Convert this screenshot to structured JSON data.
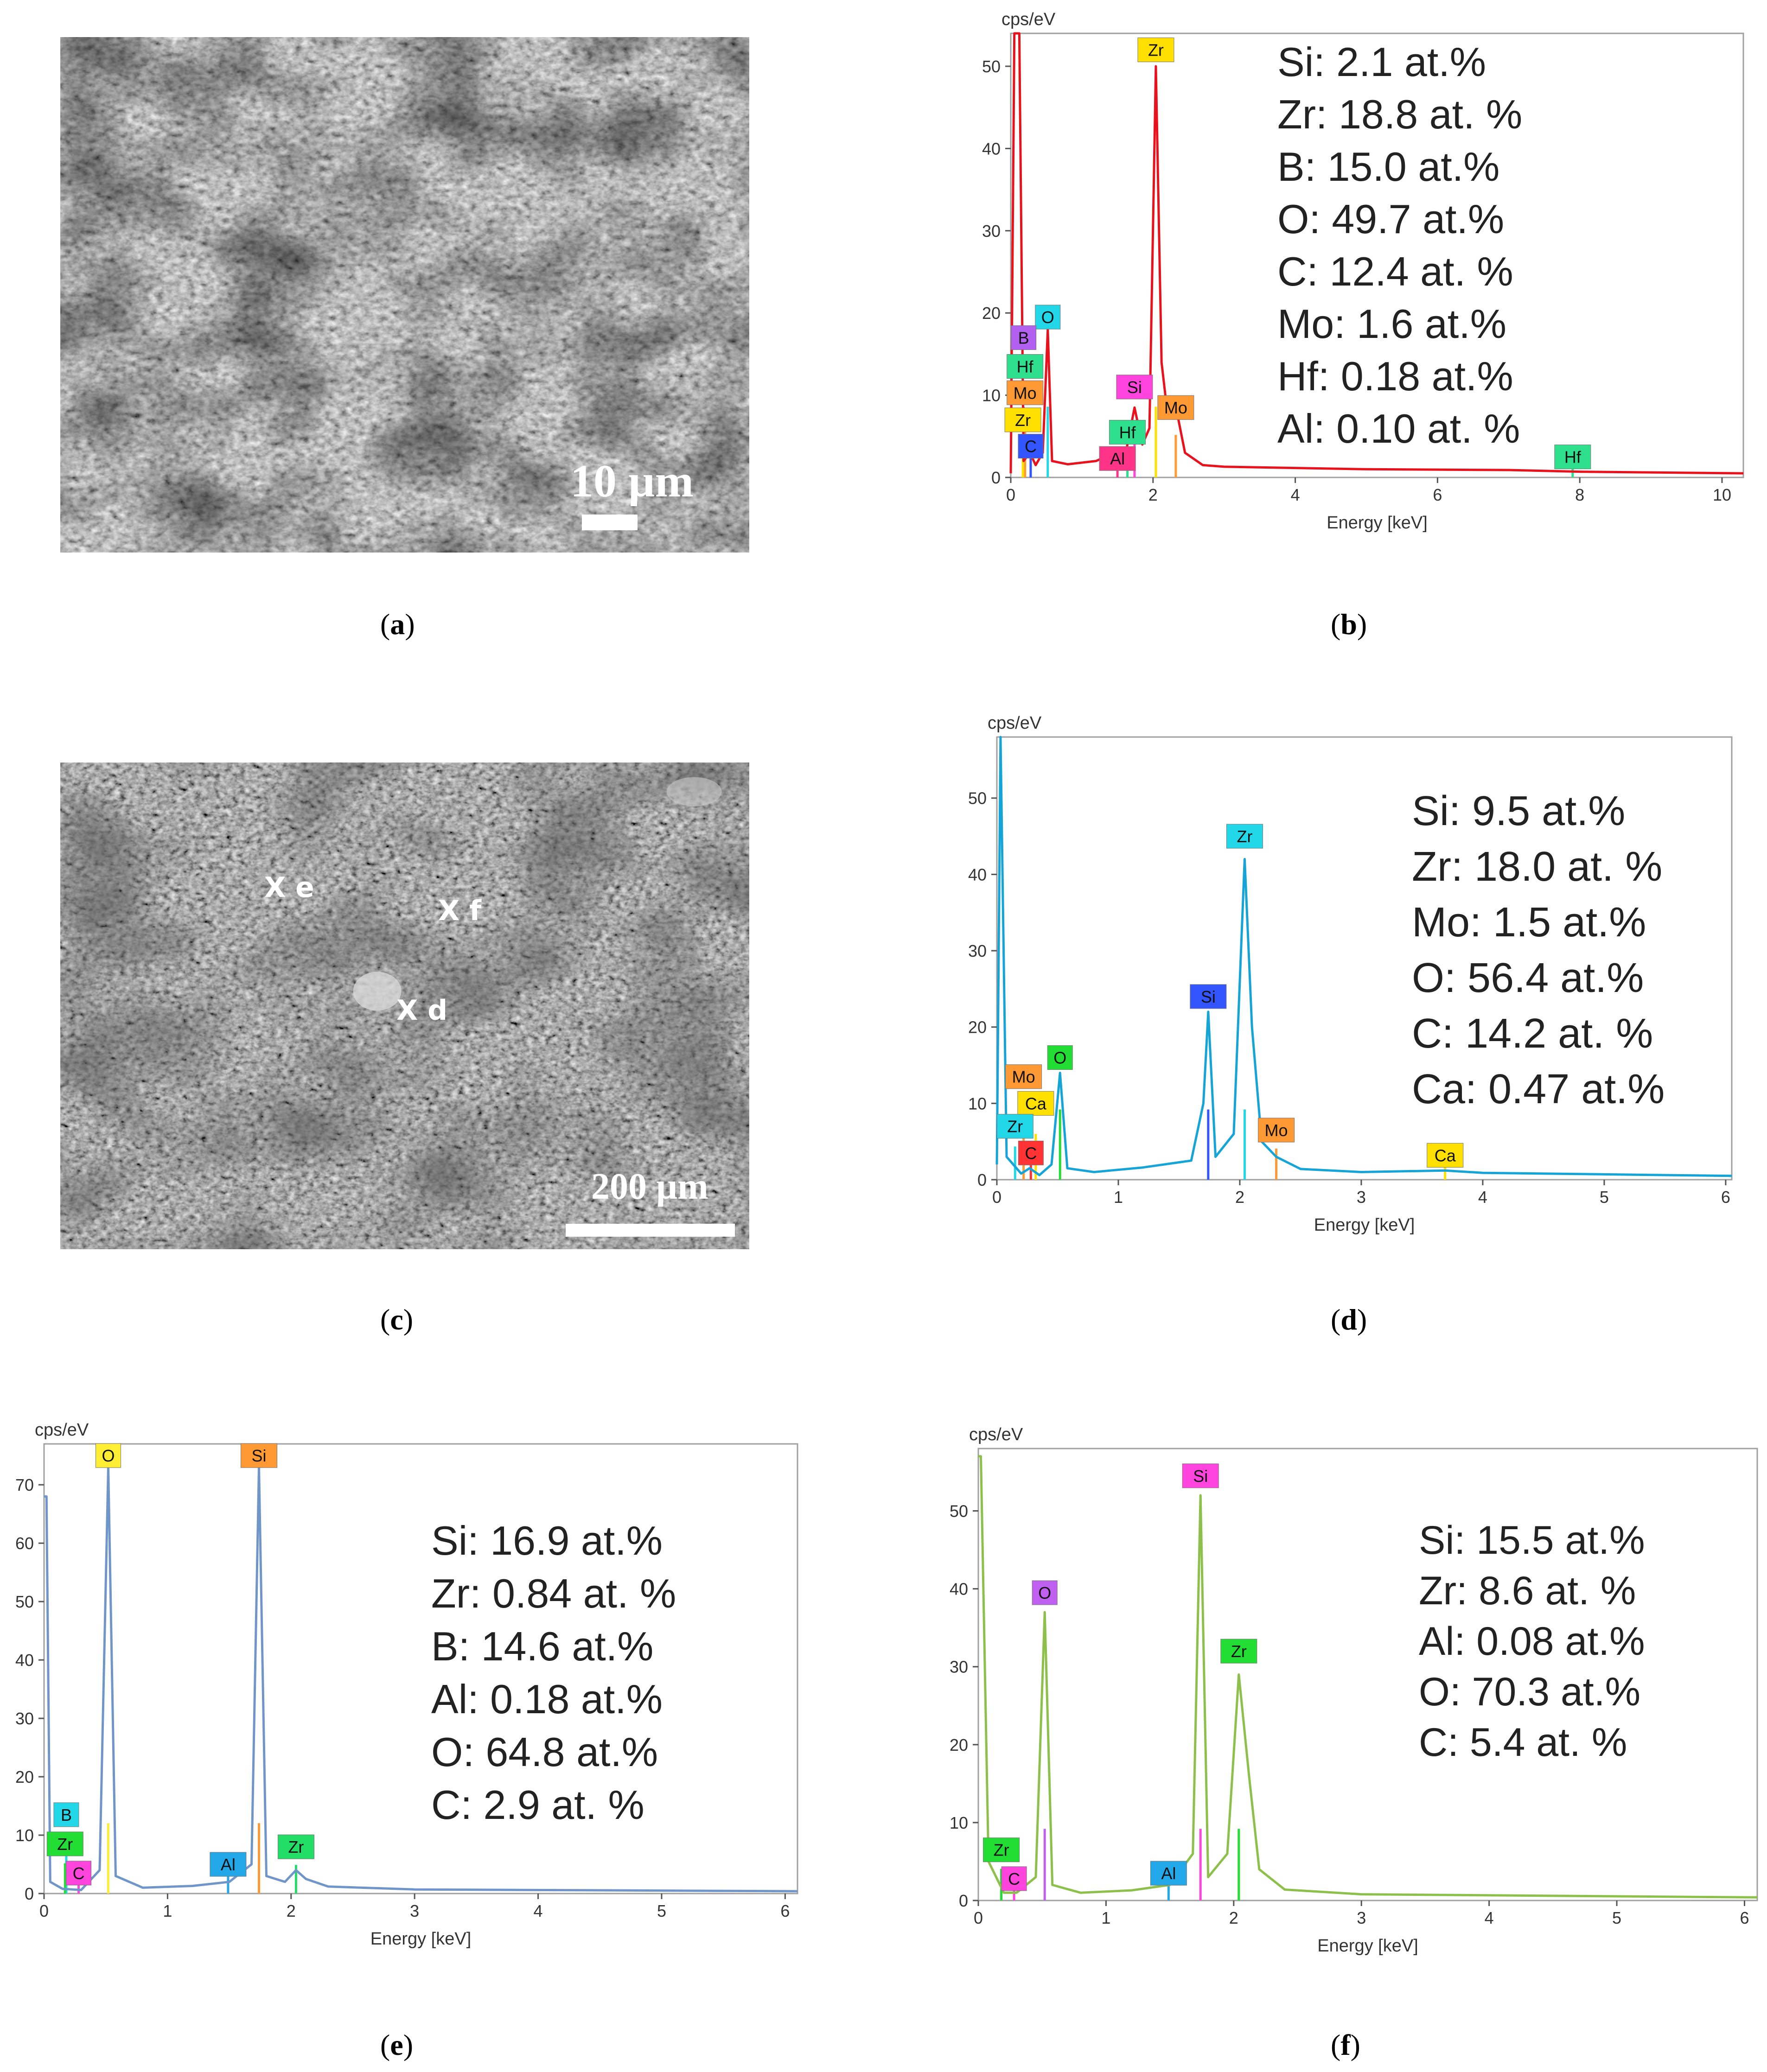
{
  "captions": {
    "a": "a",
    "b": "b",
    "c": "c",
    "d": "d",
    "e": "e",
    "f": "f"
  },
  "sem_a": {
    "scale_label": "10 µm"
  },
  "sem_c": {
    "scale_label": "200 µm",
    "markers": [
      {
        "label": "X e"
      },
      {
        "label": "X f"
      },
      {
        "label": "X d"
      }
    ]
  },
  "chart_data": [
    {
      "id": "b",
      "type": "line",
      "title": "",
      "color": "#e8111c",
      "ylabel": "cps/eV",
      "xlabel": "Energy [keV]",
      "xlim": [
        0,
        10.3
      ],
      "ylim": [
        0,
        54
      ],
      "xticks": [
        0,
        2,
        4,
        6,
        8,
        10
      ],
      "yticks": [
        0,
        10,
        20,
        30,
        40,
        50
      ],
      "baseline_y": [
        0,
        2.1
      ],
      "points": [
        [
          0,
          0.5
        ],
        [
          0.05,
          54
        ],
        [
          0.12,
          54
        ],
        [
          0.18,
          2
        ],
        [
          0.27,
          3
        ],
        [
          0.35,
          1.5
        ],
        [
          0.45,
          3
        ],
        [
          0.52,
          18
        ],
        [
          0.58,
          2
        ],
        [
          0.8,
          1.6
        ],
        [
          1.2,
          2
        ],
        [
          1.4,
          2.8
        ],
        [
          1.6,
          2.2
        ],
        [
          1.74,
          8.5
        ],
        [
          1.85,
          4
        ],
        [
          1.95,
          6
        ],
        [
          2.04,
          50
        ],
        [
          2.12,
          14
        ],
        [
          2.2,
          8
        ],
        [
          2.3,
          9.5
        ],
        [
          2.45,
          3
        ],
        [
          2.7,
          1.5
        ],
        [
          3,
          1.3
        ],
        [
          5,
          1
        ],
        [
          7,
          0.9
        ],
        [
          8,
          0.7
        ],
        [
          10.3,
          0.5
        ]
      ],
      "peak_labels": [
        {
          "text": "Zr",
          "x": 2.04,
          "y": 52,
          "color": "#ffe000"
        },
        {
          "text": "O",
          "x": 0.52,
          "y": 19.5,
          "color": "#22d8e8"
        },
        {
          "text": "B",
          "x": 0.18,
          "y": 17,
          "color": "#b260f0"
        },
        {
          "text": "Hf",
          "x": 0.2,
          "y": 13.5,
          "color": "#2ee08e"
        },
        {
          "text": "Mo",
          "x": 0.2,
          "y": 10.3,
          "color": "#ff9933"
        },
        {
          "text": "Zr",
          "x": 0.17,
          "y": 7,
          "color": "#ffe000"
        },
        {
          "text": "C",
          "x": 0.28,
          "y": 3.8,
          "color": "#3355ff"
        },
        {
          "text": "Si",
          "x": 1.74,
          "y": 11,
          "color": "#ff44dd"
        },
        {
          "text": "Hf",
          "x": 1.64,
          "y": 5.5,
          "color": "#2ee08e"
        },
        {
          "text": "Mo",
          "x": 2.32,
          "y": 8.5,
          "color": "#ff9933"
        },
        {
          "text": "Al",
          "x": 1.5,
          "y": 2.3,
          "color": "#ff3388"
        },
        {
          "text": "Hf",
          "x": 7.9,
          "y": 2.5,
          "color": "#2ee08e"
        }
      ],
      "composition": [
        "Si: 2.1 at.%",
        "Zr: 18.8 at. %",
        "B: 15.0 at.%",
        "O: 49.7 at.%",
        "C: 12.4 at. %",
        "Mo: 1.6 at.%",
        "Hf: 0.18 at.%",
        "Al: 0.10 at. %"
      ]
    },
    {
      "id": "d",
      "type": "line",
      "title": "",
      "color": "#14a4d8",
      "ylabel": "cps/eV",
      "xlabel": "Energy [keV]",
      "xlim": [
        0,
        6.05
      ],
      "ylim": [
        0,
        58
      ],
      "xticks": [
        0,
        1,
        2,
        3,
        4,
        5,
        6
      ],
      "yticks": [
        0,
        10,
        20,
        30,
        40,
        50
      ],
      "points": [
        [
          0,
          2
        ],
        [
          0.03,
          58
        ],
        [
          0.08,
          3
        ],
        [
          0.2,
          0.8
        ],
        [
          0.27,
          1.5
        ],
        [
          0.35,
          0.6
        ],
        [
          0.45,
          2
        ],
        [
          0.52,
          14
        ],
        [
          0.58,
          1.5
        ],
        [
          0.8,
          1
        ],
        [
          1.2,
          1.6
        ],
        [
          1.6,
          2.5
        ],
        [
          1.7,
          10
        ],
        [
          1.74,
          22
        ],
        [
          1.8,
          3
        ],
        [
          1.95,
          6
        ],
        [
          2.04,
          42
        ],
        [
          2.1,
          20
        ],
        [
          2.18,
          5
        ],
        [
          2.3,
          3
        ],
        [
          2.5,
          1.4
        ],
        [
          3,
          1
        ],
        [
          3.69,
          1.2
        ],
        [
          4,
          0.9
        ],
        [
          6.05,
          0.5
        ]
      ],
      "peak_labels": [
        {
          "text": "Zr",
          "x": 2.04,
          "y": 45,
          "color": "#22d8e8"
        },
        {
          "text": "Si",
          "x": 1.74,
          "y": 24,
          "color": "#3355ff"
        },
        {
          "text": "O",
          "x": 0.52,
          "y": 16,
          "color": "#22dd33"
        },
        {
          "text": "Mo",
          "x": 0.22,
          "y": 13.5,
          "color": "#ff9933"
        },
        {
          "text": "Ca",
          "x": 0.32,
          "y": 10,
          "color": "#ffe000"
        },
        {
          "text": "Zr",
          "x": 0.15,
          "y": 7,
          "color": "#22d8e8"
        },
        {
          "text": "C",
          "x": 0.28,
          "y": 3.5,
          "color": "#ff3333"
        },
        {
          "text": "Mo",
          "x": 2.3,
          "y": 6.5,
          "color": "#ff9933"
        },
        {
          "text": "Ca",
          "x": 3.69,
          "y": 3.2,
          "color": "#ffe000"
        }
      ],
      "composition": [
        "Si: 9.5 at.%",
        "Zr: 18.0 at. %",
        "Mo: 1.5 at.%",
        "O: 56.4 at.%",
        "C: 14.2 at. %",
        "Ca: 0.47 at.%"
      ]
    },
    {
      "id": "e",
      "type": "line",
      "title": "",
      "color": "#7095c8",
      "ylabel": "cps/eV",
      "xlabel": "Energy [keV]",
      "xlim": [
        0,
        6.1
      ],
      "ylim": [
        0,
        77
      ],
      "xticks": [
        0,
        1,
        2,
        3,
        4,
        5,
        6
      ],
      "yticks": [
        0,
        10,
        20,
        30,
        40,
        50,
        60,
        70
      ],
      "points": [
        [
          0,
          68
        ],
        [
          0.02,
          68
        ],
        [
          0.05,
          2
        ],
        [
          0.15,
          0.8
        ],
        [
          0.3,
          0.6
        ],
        [
          0.45,
          4
        ],
        [
          0.52,
          73
        ],
        [
          0.58,
          3
        ],
        [
          0.8,
          1
        ],
        [
          1.2,
          1.3
        ],
        [
          1.5,
          2
        ],
        [
          1.68,
          5
        ],
        [
          1.74,
          73
        ],
        [
          1.8,
          3
        ],
        [
          1.95,
          2
        ],
        [
          2.04,
          4
        ],
        [
          2.12,
          2.5
        ],
        [
          2.3,
          1.2
        ],
        [
          3,
          0.7
        ],
        [
          6.1,
          0.4
        ]
      ],
      "peak_labels": [
        {
          "text": "O",
          "x": 0.52,
          "y": 75,
          "color": "#ffee33"
        },
        {
          "text": "Si",
          "x": 1.74,
          "y": 75,
          "color": "#ff9933"
        },
        {
          "text": "B",
          "x": 0.18,
          "y": 13.5,
          "color": "#22d8e8"
        },
        {
          "text": "Zr",
          "x": 0.17,
          "y": 8.5,
          "color": "#22dd33"
        },
        {
          "text": "C",
          "x": 0.28,
          "y": 3.5,
          "color": "#ff44dd"
        },
        {
          "text": "Al",
          "x": 1.49,
          "y": 5,
          "color": "#22a8e8"
        },
        {
          "text": "Zr",
          "x": 2.04,
          "y": 8,
          "color": "#22dd66"
        }
      ],
      "composition": [
        "Si: 16.9 at.%",
        "Zr: 0.84 at. %",
        "B: 14.6 at.%",
        "Al: 0.18 at.%",
        "O: 64.8 at.%",
        "C: 2.9 at. %"
      ]
    },
    {
      "id": "f",
      "type": "line",
      "title": "",
      "color": "#8cc04a",
      "ylabel": "cps/eV",
      "xlabel": "Energy [keV]",
      "xlim": [
        0,
        6.1
      ],
      "ylim": [
        0,
        58
      ],
      "xticks": [
        0,
        1,
        2,
        3,
        4,
        5,
        6
      ],
      "yticks": [
        0,
        10,
        20,
        30,
        40,
        50
      ],
      "points": [
        [
          0,
          57
        ],
        [
          0.02,
          57
        ],
        [
          0.08,
          5
        ],
        [
          0.2,
          1
        ],
        [
          0.3,
          1
        ],
        [
          0.45,
          3
        ],
        [
          0.52,
          37
        ],
        [
          0.58,
          2
        ],
        [
          0.8,
          1
        ],
        [
          1.2,
          1.3
        ],
        [
          1.5,
          2
        ],
        [
          1.68,
          6
        ],
        [
          1.74,
          52
        ],
        [
          1.8,
          3
        ],
        [
          1.95,
          6
        ],
        [
          2.04,
          29
        ],
        [
          2.12,
          16
        ],
        [
          2.2,
          4
        ],
        [
          2.4,
          1.4
        ],
        [
          3,
          0.8
        ],
        [
          6.1,
          0.4
        ]
      ],
      "peak_labels": [
        {
          "text": "Si",
          "x": 1.74,
          "y": 54.5,
          "color": "#ff44dd"
        },
        {
          "text": "O",
          "x": 0.52,
          "y": 39.5,
          "color": "#c060f0"
        },
        {
          "text": "Zr",
          "x": 2.04,
          "y": 32,
          "color": "#22dd33"
        },
        {
          "text": "Zr",
          "x": 0.18,
          "y": 6.5,
          "color": "#22dd33"
        },
        {
          "text": "C",
          "x": 0.28,
          "y": 2.8,
          "color": "#ff44dd"
        },
        {
          "text": "Al",
          "x": 1.49,
          "y": 3.5,
          "color": "#22a8e8"
        }
      ],
      "composition": [
        "Si: 15.5 at.%",
        "Zr: 8.6 at. %",
        "Al: 0.08 at.%",
        "O: 70.3 at.%",
        "C: 5.4 at. %"
      ]
    }
  ]
}
